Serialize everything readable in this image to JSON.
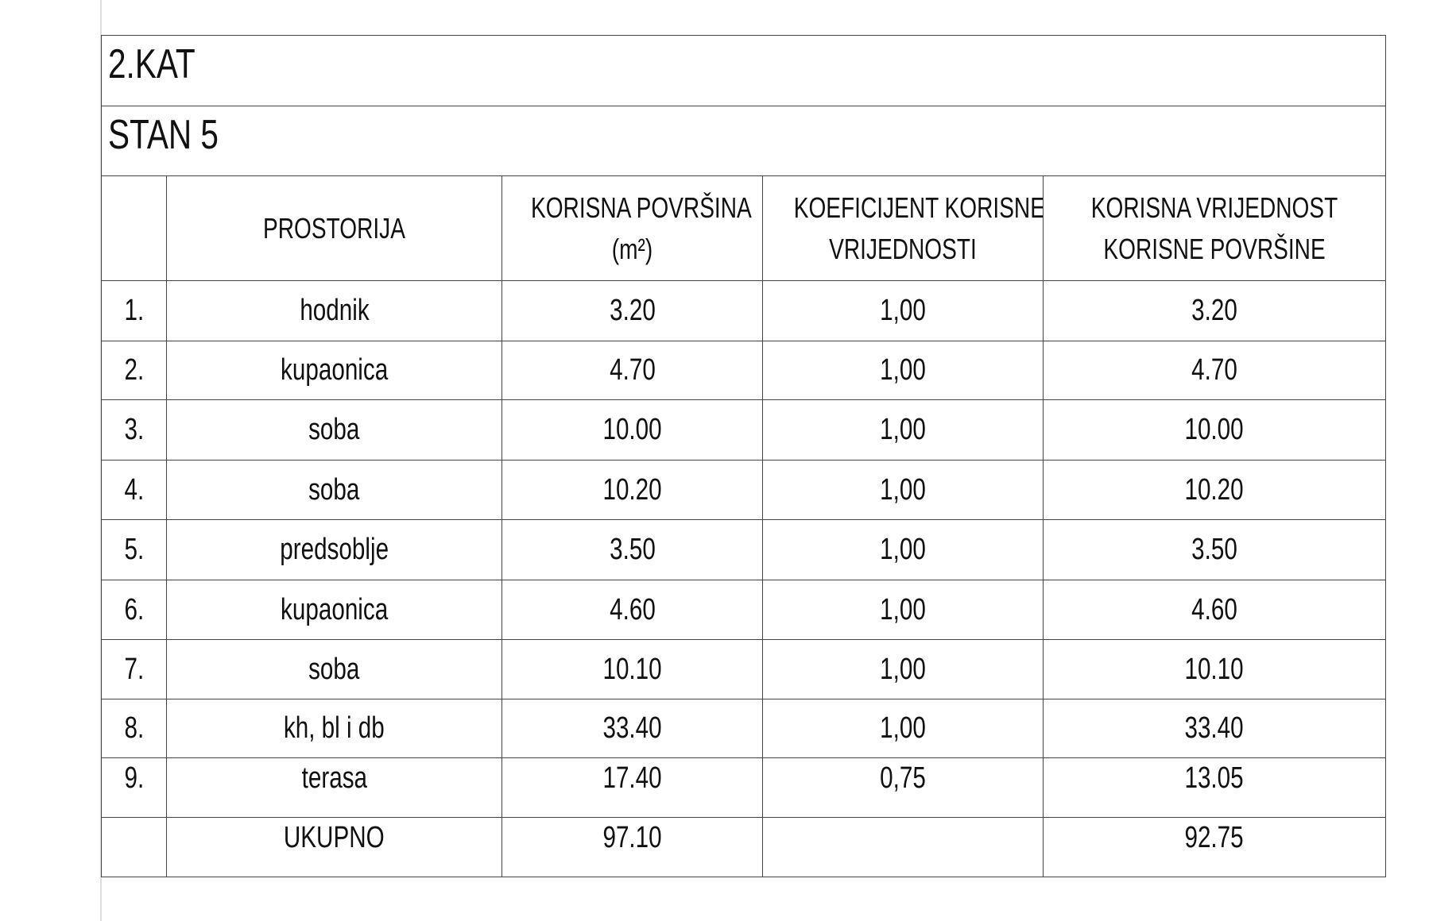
{
  "header": {
    "floor": "2.KAT",
    "unit": "STAN 5"
  },
  "table": {
    "columns": [
      [
        "PROSTORIJA"
      ],
      [
        "KORISNA POVRŠINA",
        "(m²)"
      ],
      [
        "KOEFICIJENT KORISNE",
        "VRIJEDNOSTI"
      ],
      [
        "KORISNA VRIJEDNOST",
        "KORISNE POVRŠINE"
      ]
    ],
    "rows": [
      [
        "1.",
        "hodnik",
        "3.20",
        "1,00",
        "3.20"
      ],
      [
        "2.",
        "kupaonica",
        "4.70",
        "1,00",
        "4.70"
      ],
      [
        "3.",
        "soba",
        "10.00",
        "1,00",
        "10.00"
      ],
      [
        "4.",
        "soba",
        "10.20",
        "1,00",
        "10.20"
      ],
      [
        "5.",
        "predsoblje",
        "3.50",
        "1,00",
        "3.50"
      ],
      [
        "6.",
        "kupaonica",
        "4.60",
        "1,00",
        "4.60"
      ],
      [
        "7.",
        "soba",
        "10.10",
        "1,00",
        "10.10"
      ],
      [
        "8.",
        "kh, bl i db",
        "33.40",
        "1,00",
        "33.40"
      ],
      [
        "9.",
        "terasa",
        "17.40",
        "0,75",
        "13.05"
      ]
    ],
    "total": {
      "label": "UKUPNO",
      "area": "97.10",
      "value": "92.75"
    }
  }
}
